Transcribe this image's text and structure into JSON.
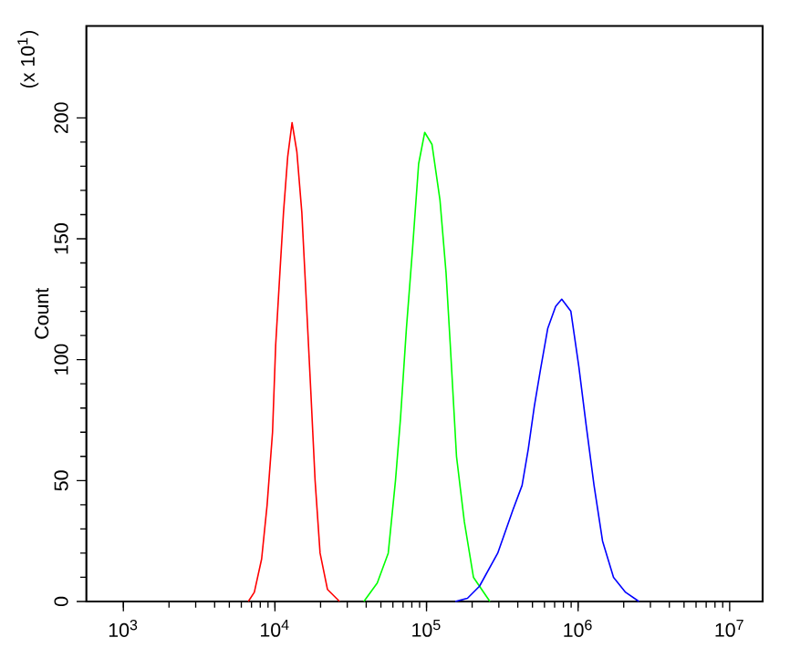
{
  "chart_data": {
    "type": "line",
    "ylabel": "Count",
    "annotations": [
      "(x 10$^{1}$)"
    ],
    "log": "x",
    "grid": false,
    "marker": "none",
    "line_style": "solid",
    "xlim": [
      570,
      16500000
    ],
    "ylim": [
      0,
      238
    ],
    "xticks": [
      {
        "value": 1000,
        "label": "10$^{3}$"
      },
      {
        "value": 10000,
        "label": "10$^{4}$"
      },
      {
        "value": 100000,
        "label": "10$^{5}$"
      },
      {
        "value": 1000000,
        "label": "10$^{6}$"
      },
      {
        "value": 10000000,
        "label": "10$^{7}$"
      }
    ],
    "yticks": [
      0,
      50,
      100,
      150,
      200
    ],
    "series": [
      {
        "color": "#ff0000",
        "x": [
          6670,
          7310,
          8170,
          8880,
          9200,
          9640,
          10110,
          10780,
          11390,
          12140,
          12970,
          13950,
          15040,
          16200,
          17270,
          18400,
          19850,
          22200,
          26700
        ],
        "values": [
          0,
          3.8,
          17.6,
          40,
          53,
          70,
          106,
          136,
          161,
          184,
          198,
          186,
          161,
          121,
          86,
          50,
          20,
          5,
          0
        ]
      },
      {
        "color": "#00ff00",
        "x": [
          38600,
          47300,
          55900,
          62400,
          67300,
          73700,
          80900,
          88700,
          97300,
          108700,
          122700,
          134500,
          143500,
          157700,
          177600,
          204000,
          262000
        ],
        "values": [
          0,
          7.6,
          20,
          50,
          75.5,
          113,
          146,
          181,
          194,
          189,
          166,
          136,
          106,
          60,
          33,
          10,
          0
        ]
      },
      {
        "color": "#0000ff",
        "x": [
          154700,
          186200,
          223600,
          295000,
          372000,
          427000,
          469000,
          514000,
          564000,
          631000,
          711000,
          780000,
          896000,
          1012000,
          1130000,
          1274000,
          1450000,
          1713000,
          2057000,
          2523000
        ],
        "values": [
          0,
          1.3,
          6.3,
          20,
          38,
          48,
          63,
          80.6,
          95.7,
          113,
          122,
          125,
          120,
          97,
          73,
          48,
          25,
          10,
          3.8,
          0
        ]
      }
    ]
  }
}
